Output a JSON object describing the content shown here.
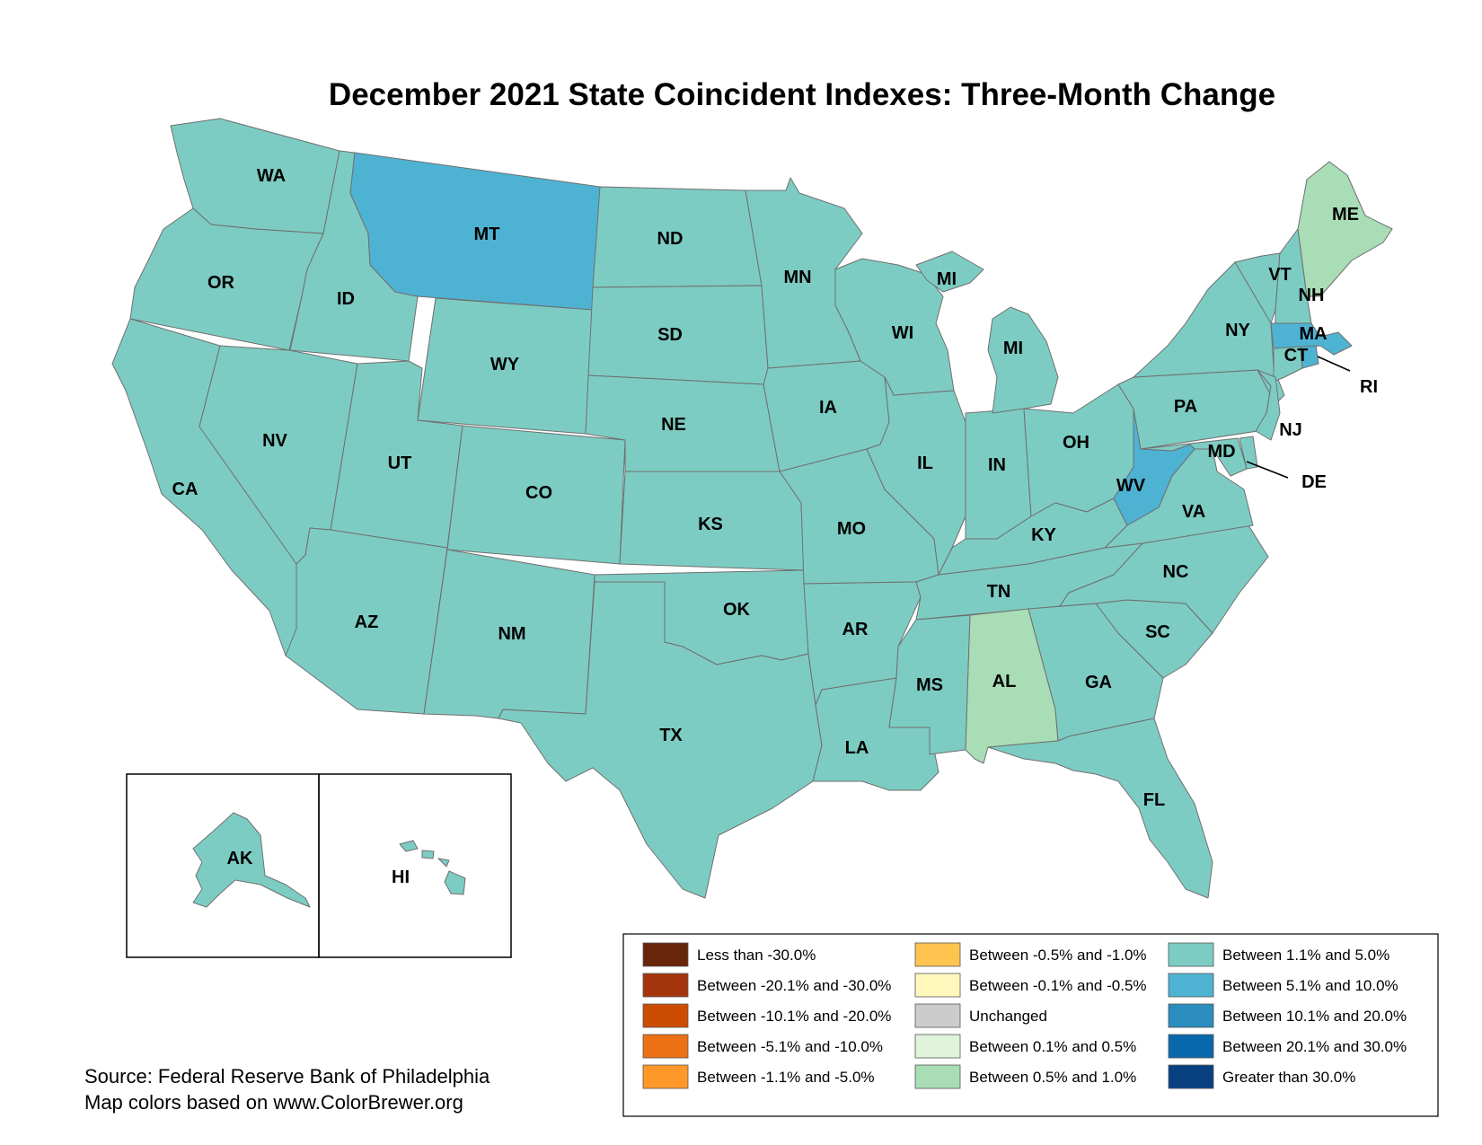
{
  "title": "December 2021 State Coincident Indexes: Three-Month Change",
  "source": {
    "line1": "Source: Federal Reserve Bank of Philadelphia",
    "line2": "Map colors based on www.ColorBrewer.org"
  },
  "legend": [
    {
      "id": "lt-30",
      "label": "Less than -30.0%",
      "color": "#67260a"
    },
    {
      "id": "n20-30",
      "label": "Between -20.1% and -30.0%",
      "color": "#a3340b"
    },
    {
      "id": "n10-20",
      "label": "Between -10.1% and -20.0%",
      "color": "#cc4c02"
    },
    {
      "id": "n5-10",
      "label": "Between -5.1% and -10.0%",
      "color": "#ec7014"
    },
    {
      "id": "n1-5",
      "label": "Between -1.1% and -5.0%",
      "color": "#fe9929"
    },
    {
      "id": "n05-1",
      "label": "Between -0.5% and -1.0%",
      "color": "#fec44f"
    },
    {
      "id": "n01-05",
      "label": "Between -0.1% and -0.5%",
      "color": "#fff7bc"
    },
    {
      "id": "unch",
      "label": "Unchanged",
      "color": "#cccccc"
    },
    {
      "id": "p01-05",
      "label": "Between 0.1% and 0.5%",
      "color": "#e0f3db"
    },
    {
      "id": "p05-1",
      "label": "Between 0.5% and 1.0%",
      "color": "#a8ddb5"
    },
    {
      "id": "p1-5",
      "label": "Between 1.1% and 5.0%",
      "color": "#7dccc3"
    },
    {
      "id": "p5-10",
      "label": "Between 5.1% and 10.0%",
      "color": "#4eb3d3"
    },
    {
      "id": "p10-20",
      "label": "Between 10.1% and 20.0%",
      "color": "#2b8cbe"
    },
    {
      "id": "p20-30",
      "label": "Between 20.1% and 30.0%",
      "color": "#0868ac"
    },
    {
      "id": "gt30",
      "label": "Greater than 30.0%",
      "color": "#084081"
    }
  ],
  "states": [
    {
      "abbr": "WA",
      "category": "p1-5"
    },
    {
      "abbr": "OR",
      "category": "p1-5"
    },
    {
      "abbr": "CA",
      "category": "p1-5"
    },
    {
      "abbr": "ID",
      "category": "p1-5"
    },
    {
      "abbr": "NV",
      "category": "p1-5"
    },
    {
      "abbr": "MT",
      "category": "p5-10"
    },
    {
      "abbr": "WY",
      "category": "p1-5"
    },
    {
      "abbr": "UT",
      "category": "p1-5"
    },
    {
      "abbr": "AZ",
      "category": "p1-5"
    },
    {
      "abbr": "CO",
      "category": "p1-5"
    },
    {
      "abbr": "NM",
      "category": "p1-5"
    },
    {
      "abbr": "ND",
      "category": "p1-5"
    },
    {
      "abbr": "SD",
      "category": "p1-5"
    },
    {
      "abbr": "NE",
      "category": "p1-5"
    },
    {
      "abbr": "KS",
      "category": "p1-5"
    },
    {
      "abbr": "OK",
      "category": "p1-5"
    },
    {
      "abbr": "TX",
      "category": "p1-5"
    },
    {
      "abbr": "MN",
      "category": "p1-5"
    },
    {
      "abbr": "IA",
      "category": "p1-5"
    },
    {
      "abbr": "MO",
      "category": "p1-5"
    },
    {
      "abbr": "AR",
      "category": "p1-5"
    },
    {
      "abbr": "LA",
      "category": "p1-5"
    },
    {
      "abbr": "WI",
      "category": "p1-5"
    },
    {
      "abbr": "IL",
      "category": "p1-5"
    },
    {
      "abbr": "MI",
      "category": "p1-5"
    },
    {
      "abbr": "IN",
      "category": "p1-5"
    },
    {
      "abbr": "OH",
      "category": "p1-5"
    },
    {
      "abbr": "KY",
      "category": "p1-5"
    },
    {
      "abbr": "TN",
      "category": "p1-5"
    },
    {
      "abbr": "MS",
      "category": "p1-5"
    },
    {
      "abbr": "AL",
      "category": "p05-1"
    },
    {
      "abbr": "GA",
      "category": "p1-5"
    },
    {
      "abbr": "FL",
      "category": "p1-5"
    },
    {
      "abbr": "SC",
      "category": "p1-5"
    },
    {
      "abbr": "NC",
      "category": "p1-5"
    },
    {
      "abbr": "VA",
      "category": "p1-5"
    },
    {
      "abbr": "WV",
      "category": "p5-10"
    },
    {
      "abbr": "PA",
      "category": "p1-5"
    },
    {
      "abbr": "NY",
      "category": "p1-5"
    },
    {
      "abbr": "VT",
      "category": "p1-5"
    },
    {
      "abbr": "NH",
      "category": "p1-5"
    },
    {
      "abbr": "ME",
      "category": "p05-1"
    },
    {
      "abbr": "MA",
      "category": "p5-10"
    },
    {
      "abbr": "CT",
      "category": "p1-5"
    },
    {
      "abbr": "RI",
      "category": "p5-10"
    },
    {
      "abbr": "NJ",
      "category": "p1-5"
    },
    {
      "abbr": "DE",
      "category": "p1-5"
    },
    {
      "abbr": "MD",
      "category": "p1-5"
    },
    {
      "abbr": "AK",
      "category": "p1-5"
    },
    {
      "abbr": "HI",
      "category": "p1-5"
    }
  ]
}
